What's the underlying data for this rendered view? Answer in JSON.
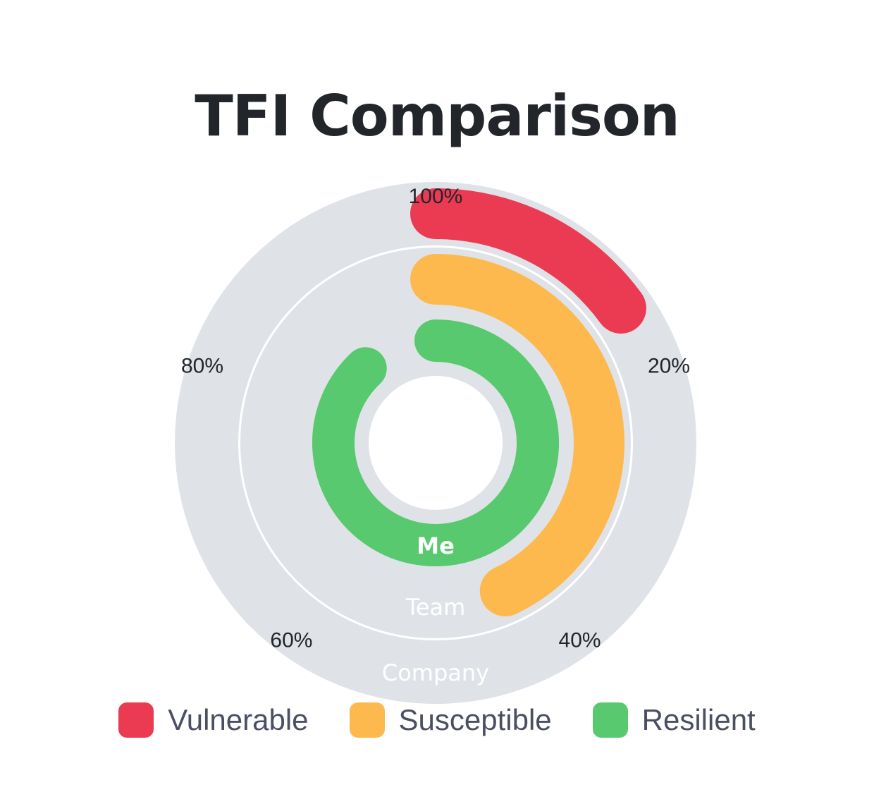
{
  "chart_data": {
    "type": "radial-bar",
    "title": "TFI Comparison",
    "angular_axis": {
      "min": 0,
      "max": 100,
      "direction": "clockwise",
      "tick_labels": [
        "100%",
        "20%",
        "40%",
        "60%",
        "80%"
      ]
    },
    "rings": [
      {
        "name": "Company",
        "value": 15,
        "category": "Vulnerable"
      },
      {
        "name": "Team",
        "value": 43,
        "category": "Susceptible"
      },
      {
        "name": "Me",
        "value": 88,
        "category": "Resilient"
      }
    ],
    "legend": [
      {
        "label": "Vulnerable",
        "color": "#ea3b52"
      },
      {
        "label": "Susceptible",
        "color": "#fdb94e"
      },
      {
        "label": "Resilient",
        "color": "#58c96e"
      }
    ],
    "legend_position": "bottom",
    "track_color": "#dfe3e8",
    "ring_label_color": "#ffffff"
  }
}
